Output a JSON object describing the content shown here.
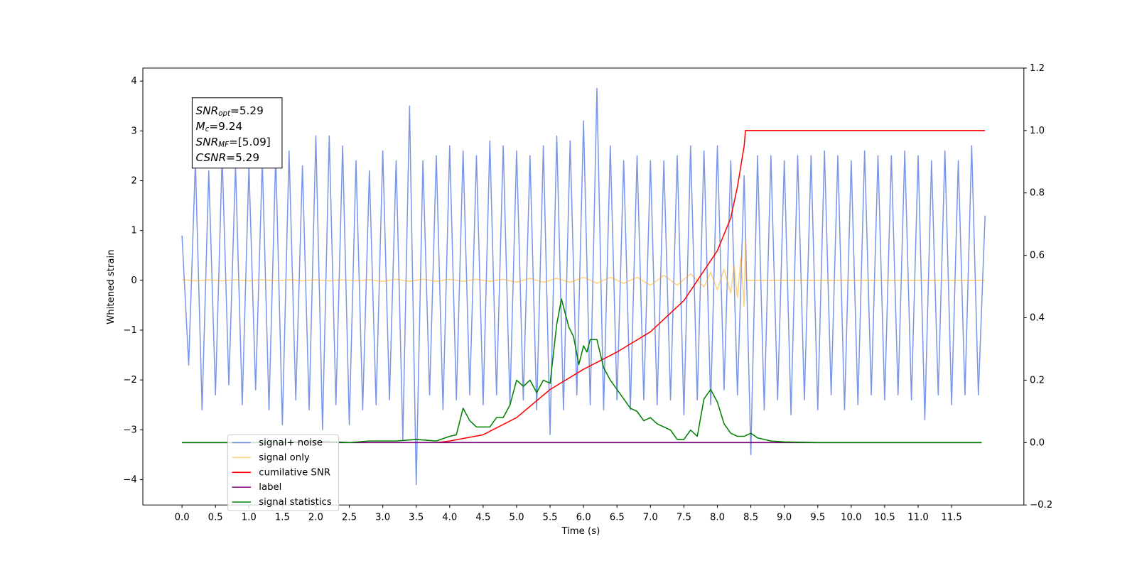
{
  "chart_data": {
    "type": "line",
    "xlabel": "Time (s)",
    "ylabel": "Whitened strain",
    "xlim": [
      -0.585,
      12.58
    ],
    "ylim": [
      -4.51,
      4.26
    ],
    "y2lim": [
      -0.2,
      1.2
    ],
    "xticks": [
      {
        "value": 0,
        "label": "0.0"
      },
      0.5,
      {
        "value": 1,
        "label": "1.0"
      },
      1.5,
      {
        "value": 2,
        "label": "2.0"
      },
      2.5,
      {
        "value": 3,
        "label": "3.0"
      },
      3.5,
      {
        "value": 4,
        "label": "4.0"
      },
      4.5,
      {
        "value": 5,
        "label": "5.0"
      },
      5.5,
      {
        "value": 6,
        "label": "6.0"
      },
      6.5,
      {
        "value": 7,
        "label": "7.0"
      },
      7.5,
      {
        "value": 8,
        "label": "8.0"
      },
      8.5,
      {
        "value": 9,
        "label": "9.0"
      },
      9.5,
      {
        "value": 10,
        "label": "10.0"
      },
      10.5,
      {
        "value": 11,
        "label": "11.0"
      },
      11.5
    ],
    "yticks": [
      {
        "value": -4,
        "label": "−4"
      },
      {
        "value": -3,
        "label": "−3"
      },
      {
        "value": -2,
        "label": "−2"
      },
      {
        "value": -1,
        "label": "−1"
      },
      0,
      1,
      2,
      3,
      4
    ],
    "y2ticks": [
      {
        "value": -0.2,
        "label": "−0.2"
      },
      {
        "value": 0,
        "label": "0.0"
      },
      0.2,
      0.4,
      0.6,
      0.8,
      {
        "value": 1,
        "label": "1.0"
      },
      1.2
    ],
    "legend": "lower left",
    "annotation": [
      {
        "text": "SNR",
        "sub": "opt",
        "rest": "=5.29"
      },
      {
        "text": "M",
        "sub": "c",
        "rest": "=9.24"
      },
      {
        "text": "SNR",
        "sub": "MF",
        "rest": "=[5.09]"
      },
      {
        "text": "CSNR",
        "sub": "",
        "rest": "=5.29"
      }
    ],
    "series": [
      {
        "name": "signal+ noise",
        "color": "#4169e1",
        "alpha": 0.7,
        "x": [
          0,
          0.1,
          0.2,
          0.3,
          0.4,
          0.5,
          0.6,
          0.7,
          0.8,
          0.9,
          1,
          1.1,
          1.2,
          1.3,
          1.4,
          1.5,
          1.6,
          1.7,
          1.8,
          1.9,
          2,
          2.1,
          2.2,
          2.3,
          2.4,
          2.5,
          2.6,
          2.7,
          2.8,
          2.9,
          3,
          3.1,
          3.2,
          3.3,
          3.4,
          3.5,
          3.6,
          3.7,
          3.8,
          3.9,
          4,
          4.1,
          4.2,
          4.3,
          4.4,
          4.5,
          4.6,
          4.7,
          4.8,
          4.9,
          5,
          5.1,
          5.2,
          5.3,
          5.4,
          5.5,
          5.6,
          5.7,
          5.8,
          5.9,
          6,
          6.1,
          6.2,
          6.3,
          6.4,
          6.5,
          6.6,
          6.7,
          6.8,
          6.9,
          7,
          7.1,
          7.2,
          7.3,
          7.4,
          7.5,
          7.6,
          7.7,
          7.8,
          7.9,
          8,
          8.1,
          8.2,
          8.3,
          8.4,
          8.5,
          8.6,
          8.7,
          8.8,
          8.9,
          9,
          9.1,
          9.2,
          9.3,
          9.4,
          9.5,
          9.6,
          9.7,
          9.8,
          9.9,
          10,
          10.1,
          10.2,
          10.3,
          10.4,
          10.5,
          10.6,
          10.7,
          10.8,
          10.9,
          11,
          11.1,
          11.2,
          11.3,
          11.4,
          11.5,
          11.6,
          11.7,
          11.8,
          11.9,
          12
        ],
        "values": [
          0.9,
          -1.7,
          2.4,
          -2.6,
          2.2,
          -2.3,
          2.5,
          -2.1,
          2.3,
          -2.5,
          2.3,
          -2.2,
          2.4,
          -2.6,
          2.5,
          -2.9,
          2.6,
          -2.4,
          2.3,
          -2.6,
          2.9,
          -3.0,
          2.9,
          -2.5,
          2.7,
          -2.9,
          2.4,
          -2.6,
          2.2,
          -2.5,
          2.6,
          -2.4,
          2.4,
          -3.2,
          3.5,
          -4.1,
          2.4,
          -2.3,
          2.5,
          -2.6,
          2.7,
          -2.4,
          2.6,
          -2.3,
          2.5,
          -2.5,
          2.8,
          -2.3,
          2.7,
          -2.5,
          2.6,
          -2.4,
          2.5,
          -2.6,
          2.7,
          -3.1,
          2.9,
          -2.6,
          2.8,
          -2.3,
          3.2,
          -2.5,
          3.85,
          -2.6,
          2.7,
          -2.4,
          2.4,
          -2.6,
          2.5,
          -2.4,
          2.4,
          -2.5,
          2.4,
          -2.4,
          2.5,
          -2.7,
          2.7,
          -2.4,
          2.6,
          -2.5,
          2.7,
          -2.2,
          2.4,
          -2.3,
          2.1,
          -3.5,
          2.5,
          -2.6,
          2.5,
          -2.4,
          2.4,
          -2.7,
          2.5,
          -2.4,
          2.5,
          -2.6,
          2.6,
          -2.3,
          2.5,
          -2.6,
          2.4,
          -2.5,
          2.6,
          -2.3,
          2.5,
          -2.4,
          2.5,
          -2.3,
          2.6,
          -2.4,
          2.5,
          -2.8,
          2.4,
          -2.3,
          2.6,
          -2.5,
          2.4,
          -2.3,
          2.7,
          -2.3,
          1.3
        ]
      },
      {
        "name": "signal only",
        "color": "#ffa500",
        "alpha": 0.5,
        "x": [
          0,
          0.2,
          0.4,
          0.6,
          0.8,
          1,
          1.2,
          1.4,
          1.6,
          1.8,
          2,
          2.2,
          2.4,
          2.6,
          2.8,
          3,
          3.2,
          3.4,
          3.6,
          3.8,
          4,
          4.2,
          4.4,
          4.6,
          4.8,
          5,
          5.2,
          5.4,
          5.6,
          5.8,
          6,
          6.2,
          6.4,
          6.6,
          6.8,
          7,
          7.2,
          7.4,
          7.6,
          7.8,
          7.9,
          8,
          8.1,
          8.2,
          8.25,
          8.3,
          8.35,
          8.4,
          8.42,
          8.43,
          12
        ],
        "values": [
          0.01,
          -0.01,
          0.01,
          -0.01,
          0.01,
          -0.01,
          0.01,
          -0.01,
          0.01,
          -0.01,
          0.01,
          -0.01,
          0.01,
          -0.01,
          0.01,
          -0.02,
          0.02,
          -0.02,
          0.02,
          -0.02,
          0.02,
          -0.02,
          0.02,
          -0.02,
          0.02,
          -0.04,
          0.04,
          -0.04,
          0.04,
          -0.04,
          0.06,
          -0.06,
          0.06,
          -0.06,
          0.06,
          -0.1,
          0.1,
          -0.1,
          0.13,
          -0.13,
          0.16,
          -0.19,
          0.22,
          -0.26,
          0.3,
          -0.35,
          0.45,
          -0.52,
          0.78,
          0,
          0
        ]
      },
      {
        "name": "cumilative SNR",
        "color": "#ff0000",
        "axis": "y2",
        "x": [
          3.8,
          4,
          4.5,
          5,
          5.5,
          6,
          6.5,
          7,
          7.5,
          8,
          8.2,
          8.3,
          8.4,
          8.42,
          12
        ],
        "values": [
          0,
          0.005,
          0.025,
          0.08,
          0.17,
          0.235,
          0.29,
          0.355,
          0.455,
          0.615,
          0.72,
          0.82,
          0.95,
          1,
          1
        ]
      },
      {
        "name": "label",
        "color": "#800080",
        "axis": "y2",
        "x": [
          0,
          11.95
        ],
        "values": [
          0,
          0
        ]
      },
      {
        "name": "signal statistics",
        "color": "#008000",
        "axis": "y2",
        "x": [
          0,
          1.5,
          2,
          2.5,
          2.8,
          3.2,
          3.5,
          3.8,
          4,
          4.1,
          4.2,
          4.3,
          4.4,
          4.6,
          4.7,
          4.8,
          4.9,
          5,
          5.1,
          5.2,
          5.3,
          5.4,
          5.5,
          5.6,
          5.67,
          5.78,
          5.85,
          5.93,
          6,
          6.05,
          6.1,
          6.2,
          6.3,
          6.4,
          6.5,
          6.6,
          6.7,
          6.8,
          6.9,
          7,
          7.1,
          7.2,
          7.3,
          7.4,
          7.5,
          7.6,
          7.7,
          7.8,
          7.9,
          8,
          8.1,
          8.2,
          8.3,
          8.4,
          8.5,
          8.6,
          8.8,
          9,
          9.5,
          11.95
        ],
        "values": [
          0,
          0,
          0.005,
          0,
          0.005,
          0.005,
          0.01,
          0.005,
          0.02,
          0.025,
          0.11,
          0.07,
          0.05,
          0.05,
          0.08,
          0.08,
          0.12,
          0.2,
          0.18,
          0.2,
          0.16,
          0.2,
          0.19,
          0.38,
          0.46,
          0.37,
          0.34,
          0.25,
          0.31,
          0.29,
          0.33,
          0.33,
          0.24,
          0.2,
          0.17,
          0.14,
          0.11,
          0.1,
          0.07,
          0.08,
          0.06,
          0.05,
          0.04,
          0.01,
          0.01,
          0.04,
          0.02,
          0.14,
          0.17,
          0.13,
          0.06,
          0.03,
          0.02,
          0.02,
          0.03,
          0.015,
          0.005,
          0.002,
          0,
          0
        ]
      }
    ]
  }
}
